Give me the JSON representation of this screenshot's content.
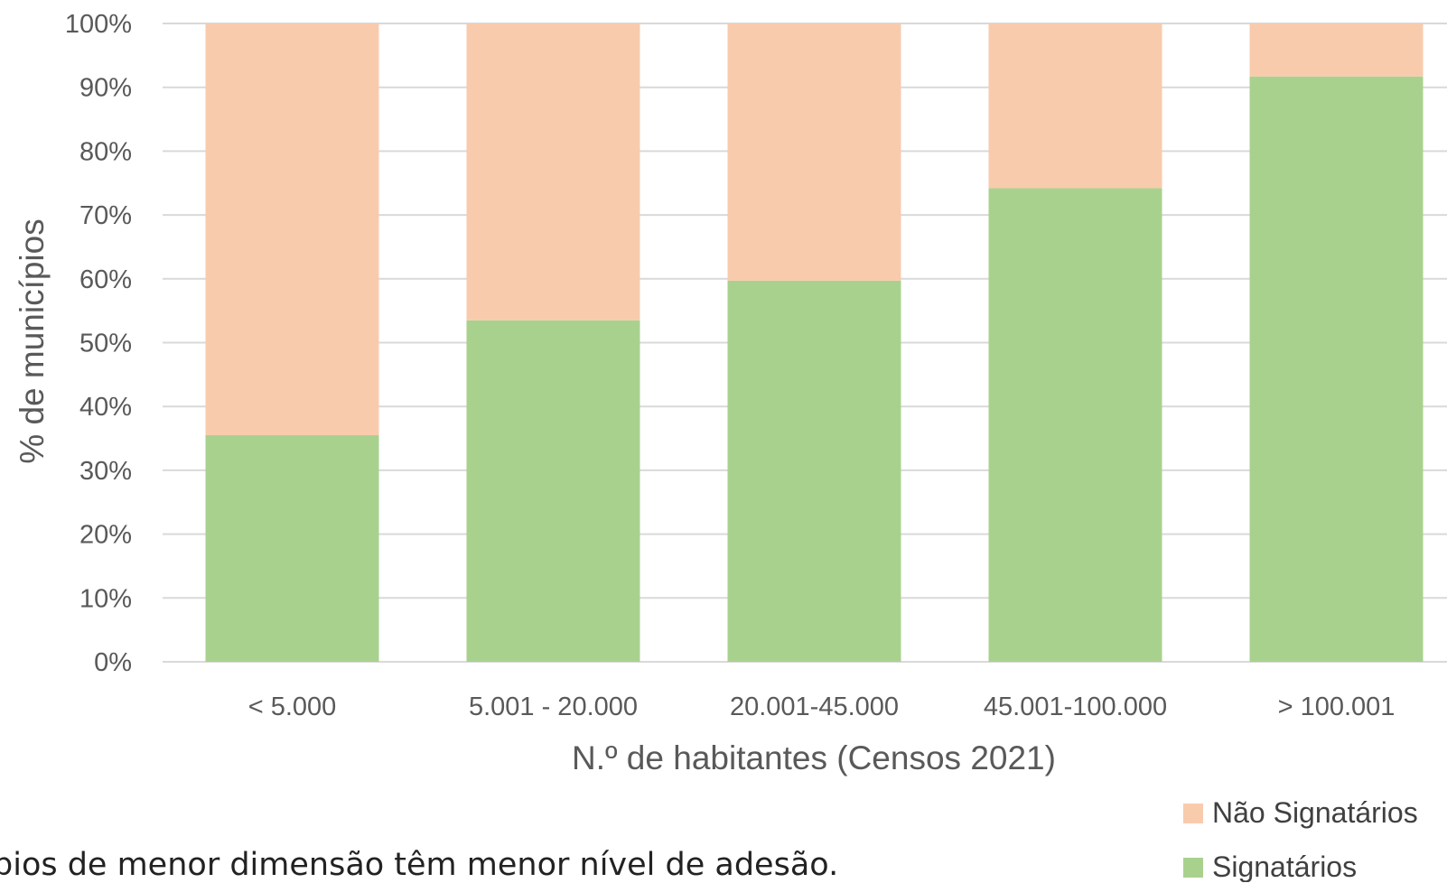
{
  "chart_data": {
    "type": "bar",
    "stacked": true,
    "categories": [
      "< 5.000",
      "5.001 - 20.000",
      "20.001-45.000",
      "45.001-100.000",
      "> 100.001"
    ],
    "series": [
      {
        "name": "Signatários",
        "values": [
          35.5,
          53.5,
          59.7,
          74.2,
          91.7
        ],
        "color": "#a9d18e"
      },
      {
        "name": "Não Signatários",
        "values": [
          64.5,
          46.5,
          40.3,
          25.8,
          8.3
        ],
        "color": "#f8cbad"
      }
    ],
    "ylim": [
      0,
      100
    ],
    "yticks": [
      "0%",
      "10%",
      "20%",
      "30%",
      "40%",
      "50%",
      "60%",
      "70%",
      "80%",
      "90%",
      "100%"
    ],
    "xlabel": "N.º de habitantes (Censos 2021)",
    "ylabel": "% de municípios",
    "grid": true,
    "legend_position": "bottom-right",
    "legend": [
      "Não Signatários",
      "Signatários"
    ]
  },
  "caption_fragment": "pios de menor dimensão têm menor nível de adesão."
}
